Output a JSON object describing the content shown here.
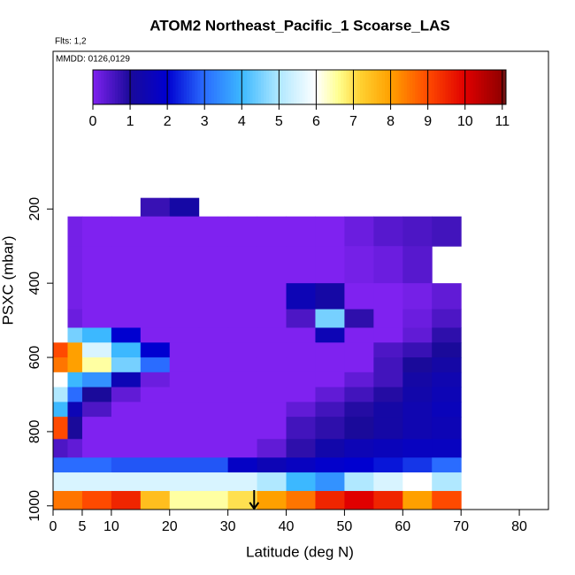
{
  "chart_data": {
    "type": "heatmap",
    "title": "ATOM2 Northeast_Pacific_1 Scoarse_LAS",
    "subtitle": "Flts: 1,2",
    "annotation": "MMDD: 0126,0129",
    "xlabel": "Latitude (deg N)",
    "ylabel": "PSXC (mbar)",
    "xlim": [
      0,
      85
    ],
    "xticks": [
      0,
      5,
      10,
      20,
      30,
      40,
      50,
      60,
      70,
      80
    ],
    "ylim": [
      1010,
      -225
    ],
    "yticks": [
      200,
      400,
      600,
      800,
      1000
    ],
    "clim": [
      0,
      11.1
    ],
    "cticks": [
      0,
      1,
      2,
      3,
      4,
      5,
      6,
      7,
      8,
      9,
      10,
      11
    ],
    "colormap": [
      [
        0,
        "#7f22f0"
      ],
      [
        1,
        "#1a0a9a"
      ],
      [
        2,
        "#0000d0"
      ],
      [
        3,
        "#2a6cff"
      ],
      [
        4,
        "#3cb8ff"
      ],
      [
        5,
        "#b0e8ff"
      ],
      [
        6,
        "#ffffff"
      ],
      [
        6.6,
        "#ffff90"
      ],
      [
        7.2,
        "#ffd030"
      ],
      [
        8,
        "#ffa000"
      ],
      [
        9,
        "#ff4a00"
      ],
      [
        10,
        "#e00000"
      ],
      [
        11,
        "#900000"
      ],
      [
        11.1,
        "#602020"
      ]
    ],
    "marker_x": 34.5,
    "x_edges": [
      0,
      2.5,
      5,
      10,
      15,
      20,
      25,
      30,
      35,
      40,
      45,
      50,
      55,
      60,
      65,
      70
    ],
    "y_edges": [
      170,
      220,
      300,
      400,
      470,
      520,
      560,
      600,
      640,
      680,
      720,
      760,
      820,
      870,
      910,
      960,
      1010
    ],
    "z": [
      [
        null,
        null,
        null,
        null,
        0.7,
        1.2,
        null,
        null,
        null,
        null,
        null,
        null,
        null,
        null,
        null
      ],
      [
        null,
        0.1,
        0,
        0,
        0,
        0,
        0,
        0,
        0,
        0,
        0,
        0.2,
        0.4,
        0.5,
        0.6
      ],
      [
        null,
        0.1,
        0,
        0,
        0,
        0,
        0,
        0,
        0,
        0,
        0,
        0.1,
        0.2,
        0.4,
        null
      ],
      [
        null,
        0.1,
        0,
        0,
        0,
        0,
        0,
        0,
        0,
        1.5,
        1.2,
        0,
        0,
        0.1,
        0.3
      ],
      [
        null,
        0.2,
        0,
        0,
        0,
        0,
        0,
        0,
        0,
        0.5,
        4.5,
        0.8,
        0,
        0.2,
        0.5
      ],
      [
        null,
        4.5,
        4,
        2,
        0,
        0,
        0,
        0,
        0,
        0,
        1.5,
        0,
        0,
        0.3,
        0.8
      ],
      [
        9,
        8,
        5.5,
        4,
        2,
        0,
        0,
        0,
        0,
        0,
        0,
        0,
        0.5,
        0.7,
        1
      ],
      [
        8.5,
        8,
        6.5,
        4.5,
        3,
        0,
        0,
        0,
        0,
        0,
        0,
        0,
        0.6,
        1,
        1.2
      ],
      [
        6,
        4,
        3.5,
        1.5,
        0.2,
        0,
        0,
        0,
        0,
        0,
        0,
        0.3,
        0.6,
        1.2,
        1.4
      ],
      [
        5,
        3,
        1,
        0.3,
        0,
        0,
        0,
        0,
        0,
        0,
        0.3,
        0.6,
        0.9,
        1.3,
        1.5
      ],
      [
        4,
        1.5,
        0.5,
        0,
        0,
        0,
        0,
        0,
        0,
        0.3,
        0.6,
        0.9,
        1.2,
        1.4,
        1.6
      ],
      [
        9,
        1,
        0,
        0,
        0,
        0,
        0,
        0,
        0,
        0.6,
        0.8,
        1,
        1.2,
        1.4,
        1.5
      ],
      [
        0.5,
        0.3,
        0,
        0,
        0,
        0,
        0,
        0,
        0.3,
        0.8,
        1.3,
        1.5,
        1.6,
        1.7,
        1.7
      ],
      [
        3,
        3,
        3,
        2.8,
        2.8,
        2.8,
        2.8,
        1.8,
        1.5,
        1.7,
        1.9,
        2,
        2.2,
        2.5,
        3
      ],
      [
        5.5,
        5.5,
        5.5,
        5.5,
        5.5,
        5.5,
        5.5,
        5.5,
        5,
        4,
        3.5,
        5,
        5.5,
        6,
        5
      ],
      [
        8.5,
        8.5,
        9,
        9.5,
        7.5,
        6.5,
        6.5,
        7,
        8,
        8.5,
        9.5,
        10,
        9.5,
        8,
        9
      ]
    ]
  }
}
